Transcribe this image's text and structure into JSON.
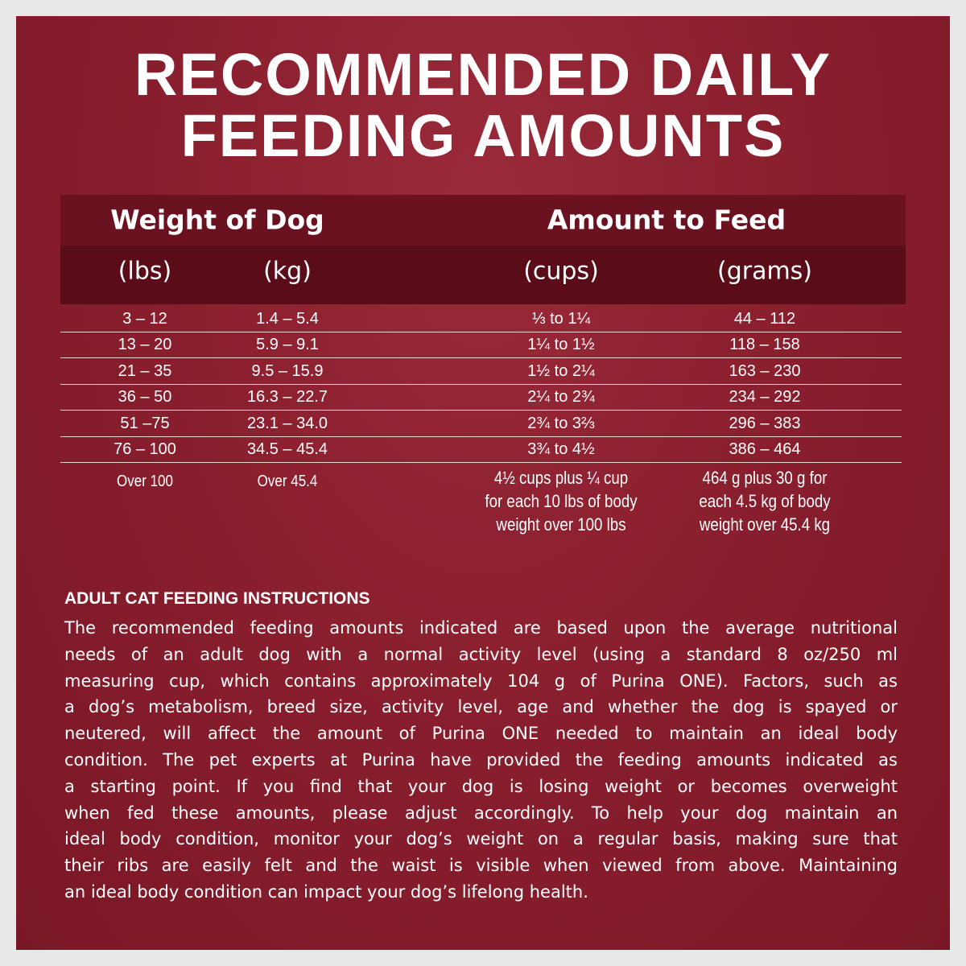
{
  "title": {
    "lines": [
      "RECOMMENDED DAILY",
      "FEEDING AMOUNTS"
    ]
  },
  "table": {
    "group_headers": [
      "Weight of Dog",
      "Amount to Feed"
    ],
    "headers": [
      "(lbs)",
      "(kg)",
      "(cups)",
      "(grams)"
    ],
    "rows": [
      [
        "3 – 12",
        "1.4 – 5.4",
        "⅓ to 1¼",
        "44 – 112"
      ],
      [
        "13 – 20",
        "5.9 – 9.1",
        "1¼ to 1½",
        "118 – 158"
      ],
      [
        "21 – 35",
        "9.5 – 15.9",
        "1½ to 2¼",
        "163 – 230"
      ],
      [
        "36 – 50",
        "16.3 – 22.7",
        "2¼ to 2¾",
        "234 – 292"
      ],
      [
        "51 –75",
        "23.1 – 34.0",
        "2¾ to 3⅔",
        "296 – 383"
      ],
      [
        "76 – 100",
        "34.5 – 45.4",
        "3¾ to 4½",
        "386 – 464"
      ]
    ],
    "last_row": {
      "lbs": "Over 100",
      "kg": "Over 45.4",
      "cups": [
        "4½ cups plus ¼ cup",
        "for each 10 lbs of body",
        "weight over 100 lbs"
      ],
      "grams": [
        "464 g plus 30 g for",
        "each 4.5 kg of body",
        "weight over 45.4 kg"
      ]
    }
  },
  "instructions": {
    "heading": "ADULT CAT FEEDING INSTRUCTIONS",
    "lines": [
      "The recommended feeding amounts indicated are based upon the average nutritional",
      "needs of an adult dog with a normal activity level (using a standard 8 oz/250 ml",
      "measuring cup, which contains approximately 104 g of Purina ONE). Factors, such as",
      "a dog’s metabolism, breed size, activity level, age and whether the dog is spayed or",
      "neutered, will affect the amount of Purina ONE needed to maintain an ideal body",
      "condition. The pet experts at Purina have provided the feeding amounts indicated as",
      "a starting point. If you find that your dog is losing weight or becomes overweight",
      "when fed these amounts, please adjust accordingly. To help your dog maintain an",
      "ideal body condition, monitor your dog’s weight on a regular basis, making sure that",
      "their ribs are easily felt and the waist is visible when viewed from above. Maintaining",
      "an ideal body condition can impact your dog’s lifelong health."
    ]
  }
}
